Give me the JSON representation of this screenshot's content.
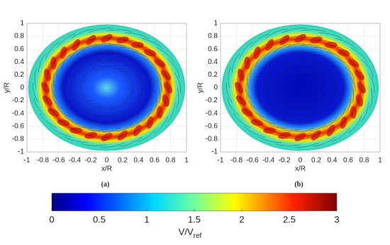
{
  "chart_data": [
    {
      "type": "heatmap",
      "caption": "(a)",
      "xlabel": "x/R",
      "ylabel": "y/R",
      "xlim": [
        -1,
        1
      ],
      "ylim": [
        -1,
        1
      ],
      "xticks": [
        -1,
        -0.8,
        -0.6,
        -0.4,
        -0.2,
        0,
        0.2,
        0.4,
        0.6,
        0.8,
        1
      ],
      "yticks": [
        -1,
        -0.8,
        -0.6,
        -0.4,
        -0.2,
        0,
        0.2,
        0.4,
        0.6,
        0.8,
        1
      ],
      "grid": true
    },
    {
      "type": "heatmap",
      "caption": "(b)",
      "xlabel": "x/R",
      "ylabel": "y/R",
      "xlim": [
        -1,
        1
      ],
      "ylim": [
        -1,
        1
      ],
      "xticks": [
        -1,
        -0.8,
        -0.6,
        -0.4,
        -0.2,
        0,
        0.2,
        0.4,
        0.6,
        0.8,
        1
      ],
      "yticks": [
        -1,
        -0.8,
        -0.6,
        -0.4,
        -0.2,
        0,
        0.2,
        0.4,
        0.6,
        0.8,
        1
      ],
      "grid": true
    },
    {
      "type": "colorbar",
      "label": "V/V",
      "label_subscript": "ref",
      "lim": [
        0,
        3
      ],
      "ticks": [
        0,
        0.5,
        1,
        1.5,
        2,
        2.5,
        3
      ]
    }
  ]
}
